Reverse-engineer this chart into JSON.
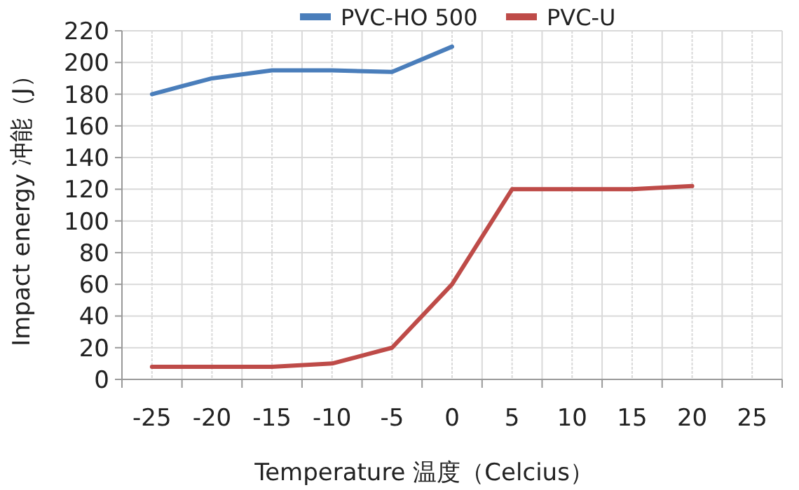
{
  "chart_data": {
    "type": "line",
    "xlabel": "Temperature 温度（Celcius）",
    "ylabel": "Impact energy 冲能（J）",
    "categories": [
      "-25",
      "-20",
      "-15",
      "-10",
      "-5",
      "0",
      "5",
      "10",
      "15",
      "20",
      "25"
    ],
    "series": [
      {
        "name": "PVC-HO 500",
        "color": "#4a7ebb",
        "values": [
          180,
          190,
          195,
          195,
          194,
          210,
          null,
          null,
          null,
          null,
          null
        ]
      },
      {
        "name": "PVC-U",
        "color": "#be4b48",
        "values": [
          8,
          8,
          8,
          10,
          20,
          60,
          120,
          120,
          120,
          122,
          null
        ]
      }
    ],
    "ylim": [
      0,
      220
    ],
    "yticks": [
      0,
      20,
      40,
      60,
      80,
      100,
      120,
      140,
      160,
      180,
      200,
      220
    ],
    "grid": true,
    "legend": "top",
    "marker": "none"
  }
}
